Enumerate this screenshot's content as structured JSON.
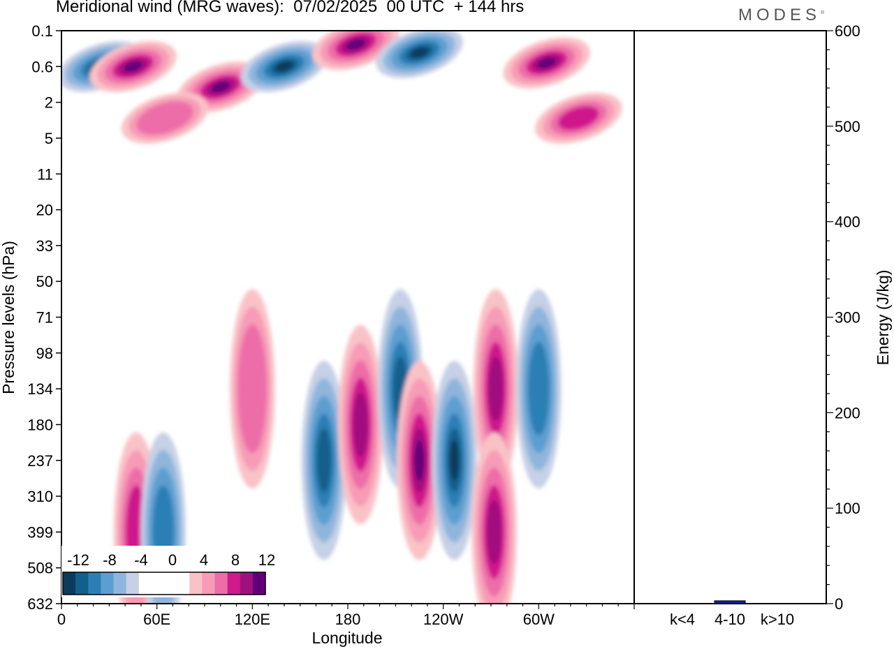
{
  "header": {
    "title": "Meridional wind (MRG waves):  07/02/2025  00 UTC  + 144 hrs",
    "brand": "MODES"
  },
  "colors": {
    "-14": "#0d3b5c",
    "-12": "#135f8c",
    "-10": "#2b7fb5",
    "-8": "#5d9ed0",
    "-6": "#8fb5dc",
    "-4": "#c6d0e6",
    "4": "#f9c2c7",
    "6": "#f79bb6",
    "8": "#ed6da8",
    "10": "#d0198d",
    "12": "#a0117e",
    "14": "#62007a"
  },
  "chart_data": [
    {
      "type": "heatmap",
      "title": "Meridional wind (MRG waves):  07/02/2025  00 UTC  + 144 hrs",
      "xlabel": "Longitude",
      "ylabel": "Pressure levels (hPa)",
      "x_ticks": [
        "0",
        "60E",
        "120E",
        "180",
        "120W",
        "60W"
      ],
      "x_tick_degrees": [
        0,
        60,
        120,
        180,
        240,
        300
      ],
      "xlim": [
        0,
        360
      ],
      "y_ticks": [
        "0.1",
        "0.6",
        "2",
        "5",
        "11",
        "20",
        "33",
        "50",
        "71",
        "98",
        "134",
        "180",
        "237",
        "310",
        "399",
        "508",
        "632"
      ],
      "colorbar": {
        "labels": [
          "-12",
          "-8",
          "-4",
          "0",
          "4",
          "8",
          "12"
        ],
        "levels": [
          -14,
          -12,
          -10,
          -8,
          -6,
          -4,
          -2,
          2,
          4,
          6,
          8,
          10,
          12,
          14
        ]
      },
      "features": [
        {
          "lon": 25,
          "p": "0.6",
          "value": -14
        },
        {
          "lon": 45,
          "p": "0.6",
          "value": 14
        },
        {
          "lon": 100,
          "p": "1.2",
          "value": 14
        },
        {
          "lon": 140,
          "p": "0.6",
          "value": -14
        },
        {
          "lon": 185,
          "p": "0.2",
          "value": 14
        },
        {
          "lon": 225,
          "p": "0.3",
          "value": -14
        },
        {
          "lon": 305,
          "p": "0.5",
          "value": 14
        },
        {
          "lon": 325,
          "p": "3",
          "value": 10
        },
        {
          "lon": 65,
          "p": "3",
          "value": 8
        },
        {
          "lon": 165,
          "p": "237",
          "value": -12
        },
        {
          "lon": 188,
          "p": "180",
          "value": 12
        },
        {
          "lon": 213,
          "p": "134",
          "value": -12
        },
        {
          "lon": 225,
          "p": "237",
          "value": 14
        },
        {
          "lon": 247,
          "p": "237",
          "value": -14
        },
        {
          "lon": 273,
          "p": "134",
          "value": 12
        },
        {
          "lon": 272,
          "p": "399",
          "value": 12
        },
        {
          "lon": 300,
          "p": "134",
          "value": -10
        },
        {
          "lon": 120,
          "p": "134",
          "value": 8
        },
        {
          "lon": 47,
          "p": "399",
          "value": 10
        },
        {
          "lon": 64,
          "p": "399",
          "value": -10
        }
      ]
    },
    {
      "type": "bar",
      "categories": [
        "k<4",
        "4-10",
        "k>10"
      ],
      "values": [
        0,
        3,
        0
      ],
      "ylabel": "Energy (J/kg)",
      "ylim": [
        0,
        600
      ],
      "y_ticks": [
        "0",
        "100",
        "200",
        "300",
        "400",
        "500",
        "600"
      ],
      "bar_color": "#1a1aaa"
    }
  ]
}
